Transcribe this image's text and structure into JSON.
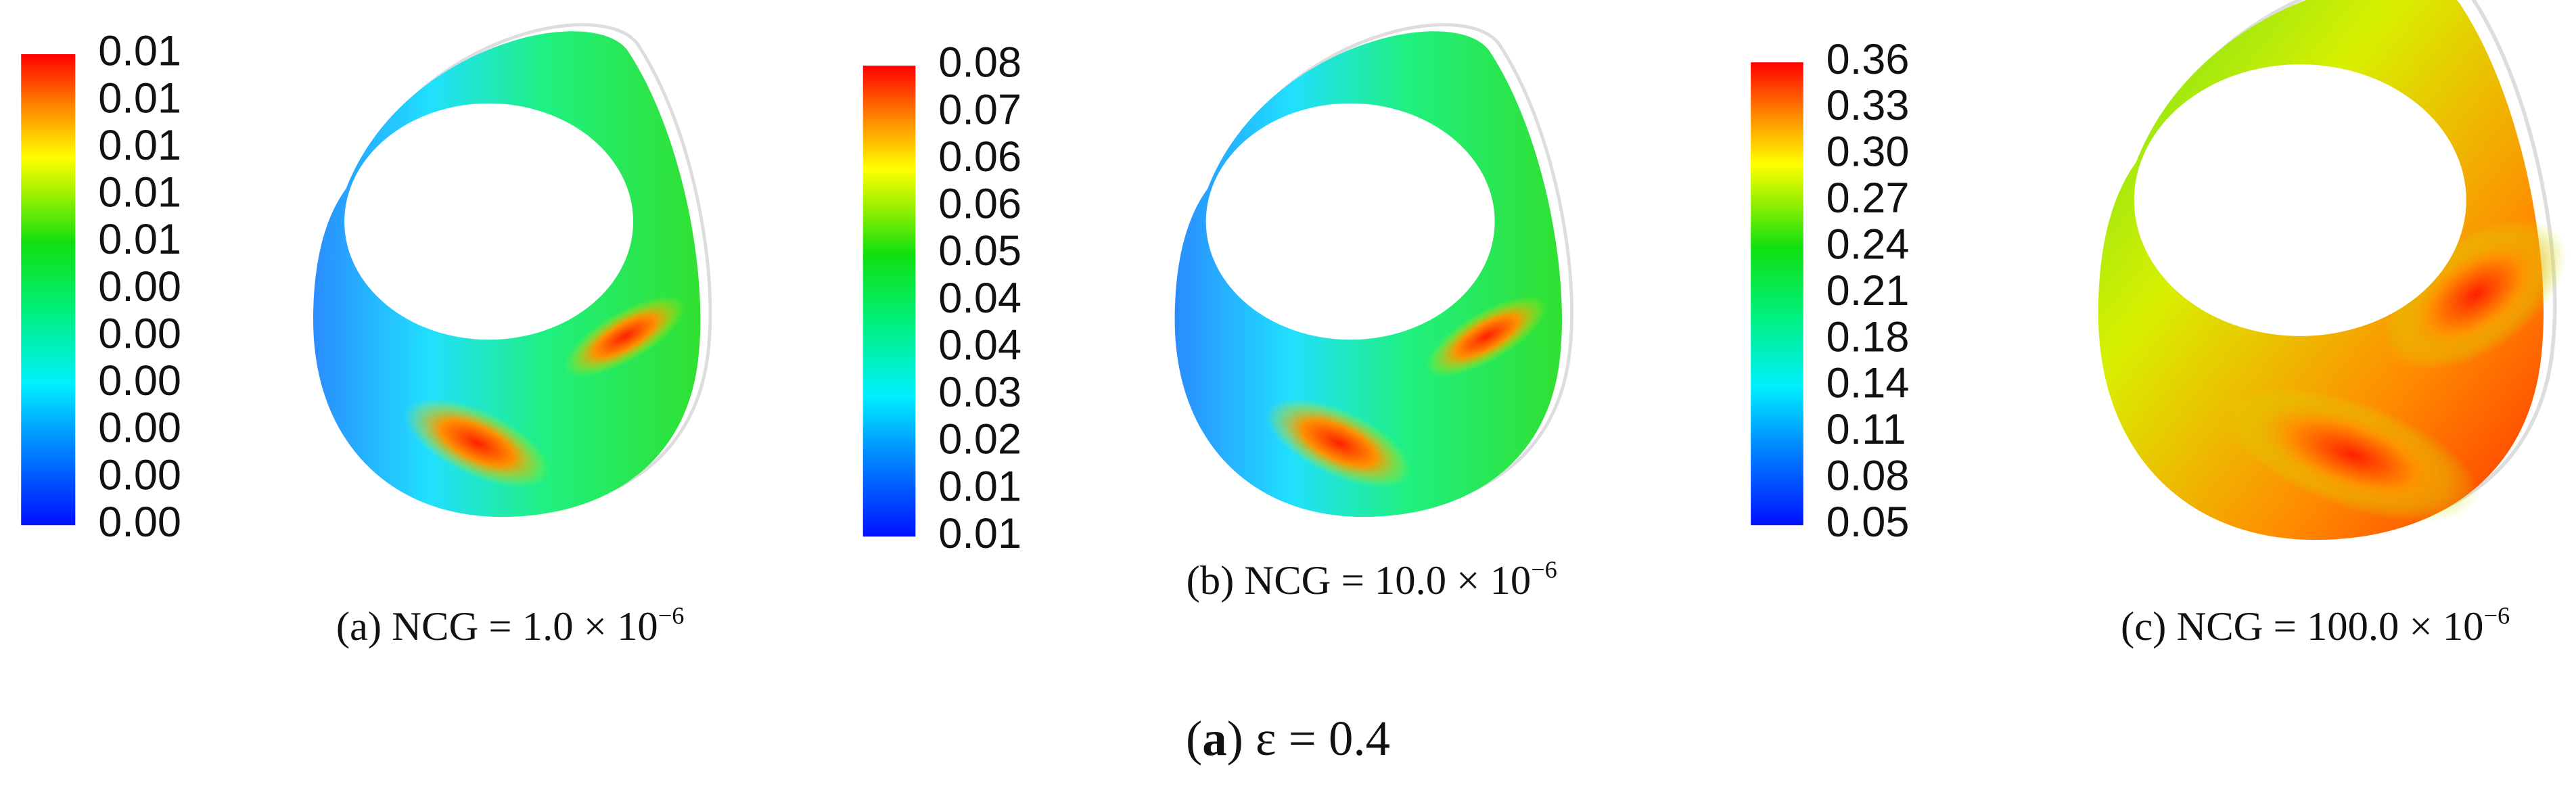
{
  "panels": [
    {
      "colorbar": {
        "labels": [
          "0.01",
          "0.01",
          "0.01",
          "0.01",
          "0.01",
          "0.00",
          "0.00",
          "0.00",
          "0.00",
          "0.00",
          "0.00"
        ]
      },
      "caption": {
        "text": "(a) NCG = 1.0 × 10",
        "superscript": "−6"
      }
    },
    {
      "colorbar": {
        "labels": [
          "0.08",
          "0.07",
          "0.06",
          "0.06",
          "0.05",
          "0.04",
          "0.04",
          "0.03",
          "0.02",
          "0.01",
          "0.01"
        ]
      },
      "caption": {
        "text": "(b) NCG = 10.0 × 10",
        "superscript": "−6"
      }
    },
    {
      "colorbar": {
        "labels": [
          "0.36",
          "0.33",
          "0.30",
          "0.27",
          "0.24",
          "0.21",
          "0.18",
          "0.14",
          "0.11",
          "0.08",
          "0.05"
        ]
      },
      "caption": {
        "text": "(c) NCG = 100.0 × 10",
        "superscript": "−6"
      }
    }
  ],
  "figure_caption": {
    "prefix": "(",
    "label": "a",
    "suffix": ") ε = 0.4"
  }
}
